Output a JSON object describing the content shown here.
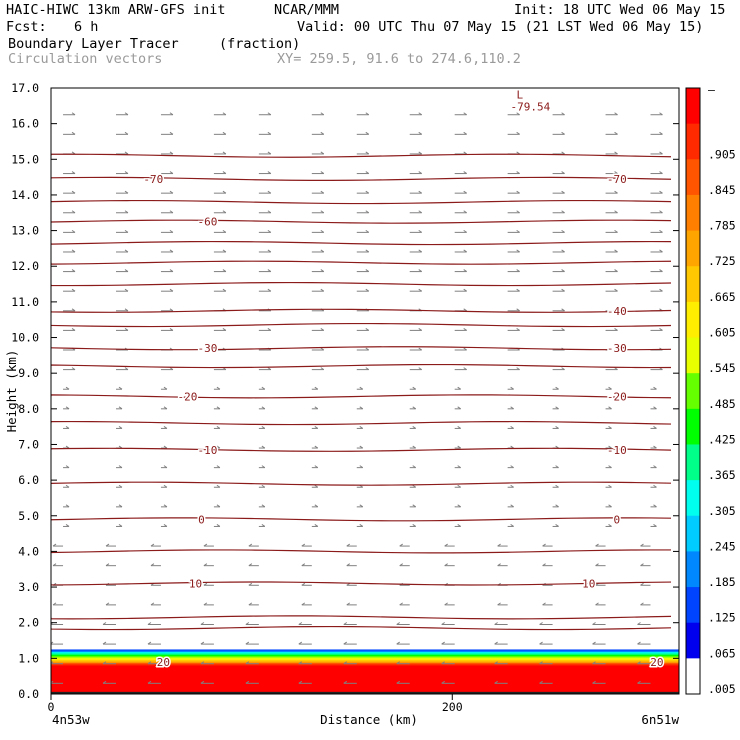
{
  "header": {
    "model_line": "HAIC-HIWC 13km ARW-GFS init",
    "org": "NCAR/MMM",
    "init": "Init: 18 UTC Wed 06 May 15",
    "fcst_label": "Fcst:",
    "fcst_value": "6 h",
    "valid": "Valid: 00 UTC Thu 07 May 15 (21 LST Wed 06 May 15)",
    "field_name": "Boundary Layer Tracer",
    "field_units": "(fraction)",
    "vector_label": "Circulation vectors",
    "xy_label": "XY= 259.5, 91.6 to 274.6,110.2"
  },
  "chart_data": {
    "type": "heatmap",
    "xlabel": "Distance (km)",
    "ylabel": "Height (km)",
    "xlim": [
      0,
      313
    ],
    "ylim": [
      0,
      17
    ],
    "x_ticks": [
      0,
      200
    ],
    "y_ticks": [
      "0.0",
      "1.0",
      "2.0",
      "3.0",
      "4.0",
      "5.0",
      "6.0",
      "7.0",
      "8.0",
      "9.0",
      "10.0",
      "11.0",
      "12.0",
      "13.0",
      "14.0",
      "15.0",
      "16.0",
      "17.0"
    ],
    "left_endpoint_label": "4n53w",
    "right_endpoint_label": "6n51w",
    "min_marker": {
      "symbol": "L",
      "value": "-79.54",
      "x": 232,
      "y": 16.6
    },
    "colorbar": {
      "labels": [
        ".905",
        ".845",
        ".785",
        ".725",
        ".665",
        ".605",
        ".545",
        ".485",
        ".425",
        ".365",
        ".305",
        ".245",
        ".185",
        ".125",
        ".065",
        ".005"
      ],
      "top_label": "–"
    },
    "temperature_contours": [
      {
        "value": "-70",
        "y": 14.45,
        "label_x": [
          51,
          282
        ]
      },
      {
        "value": "-60",
        "y": 13.25,
        "label_x": [
          78
        ]
      },
      {
        "value": "-40",
        "y": 10.75,
        "label_x": [
          282
        ]
      },
      {
        "value": "-30",
        "y": 9.7,
        "label_x": [
          78,
          282
        ]
      },
      {
        "value": "-20",
        "y": 8.35,
        "label_x": [
          68,
          282
        ]
      },
      {
        "value": "-10",
        "y": 6.85,
        "label_x": [
          78,
          282
        ]
      },
      {
        "value": "0",
        "y": 4.9,
        "label_x": [
          75,
          282
        ]
      },
      {
        "value": "10",
        "y": 3.1,
        "label_x": [
          72,
          268
        ]
      },
      {
        "value": "20",
        "y": 0.9,
        "label_x": [
          56,
          302
        ]
      }
    ],
    "contour_line_heights": [
      1.85,
      2.15,
      3.1,
      4.0,
      4.9,
      5.9,
      6.85,
      7.6,
      8.35,
      9.2,
      9.7,
      10.35,
      10.75,
      11.5,
      12.1,
      12.65,
      13.25,
      13.8,
      14.45,
      15.1
    ],
    "tracer_layer": {
      "top_km": 1.25,
      "full_fraction_top_km": 0.8,
      "fraction_at_surface": 1.0
    },
    "colors": {
      "contour": "#8b1a1a",
      "vector": "#808080",
      "label_blue": "#1a1aff"
    }
  }
}
